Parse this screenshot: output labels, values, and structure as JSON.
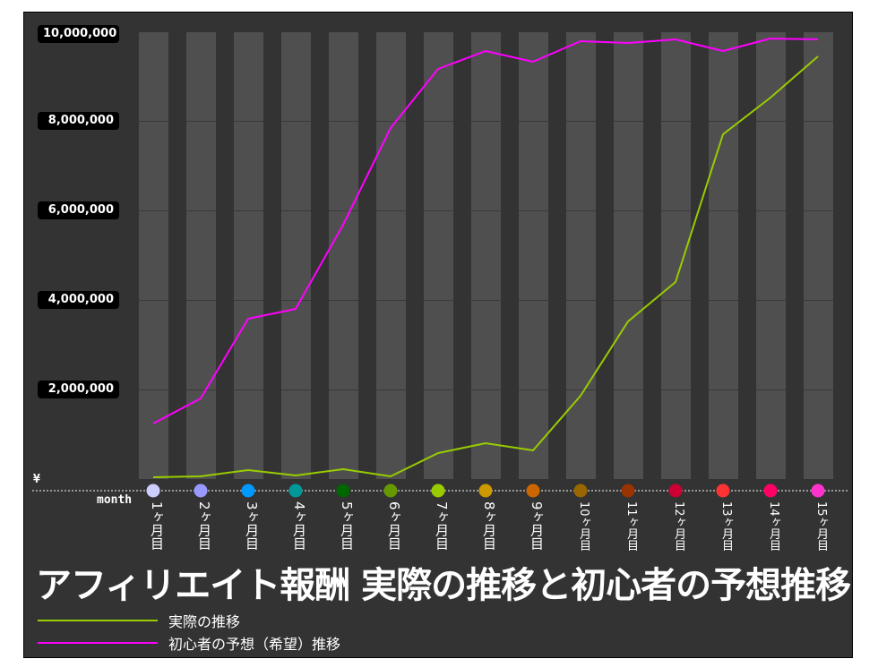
{
  "chart_data": {
    "type": "line",
    "title": "アフィリエイト報酬 実際の推移と初心者の予想推移",
    "xlabel": "month",
    "ylabel": "¥",
    "ylim": [
      0,
      10000000
    ],
    "yticks": [
      {
        "value": 10000000,
        "label": "10,000,000"
      },
      {
        "value": 8000000,
        "label": "8,000,000"
      },
      {
        "value": 6000000,
        "label": "6,000,000"
      },
      {
        "value": 4000000,
        "label": "4,000,000"
      },
      {
        "value": 2000000,
        "label": "2,000,000"
      }
    ],
    "grid": true,
    "legend_position": "bottom-left",
    "categories": [
      "1ヶ月目",
      "2ヶ月目",
      "3ヶ月目",
      "4ヶ月目",
      "5ヶ月目",
      "6ヶ月目",
      "7ヶ月目",
      "8ヶ月目",
      "9ヶ月目",
      "10ヶ月目",
      "11ヶ月目",
      "12ヶ月目",
      "13ヶ月目",
      "14ヶ月目",
      "15ヶ月目"
    ],
    "category_dot_colors": [
      "#CCCCFF",
      "#9999FF",
      "#0099FF",
      "#009999",
      "#006600",
      "#669900",
      "#99CC00",
      "#CC9900",
      "#CC6600",
      "#996600",
      "#993300",
      "#CC0033",
      "#FF3333",
      "#FF0066",
      "#FF33CC"
    ],
    "series": [
      {
        "name": "実際の推移",
        "color": "#99CC00",
        "values": [
          40000,
          60000,
          200000,
          80000,
          220000,
          60000,
          580000,
          800000,
          640000,
          1860000,
          3520000,
          4400000,
          7700000,
          8520000,
          9440000
        ]
      },
      {
        "name": "初心者の予想（希望）推移",
        "color": "#FF00FF",
        "values": [
          1240000,
          1800000,
          3580000,
          3800000,
          5680000,
          7840000,
          9160000,
          9560000,
          9320000,
          9780000,
          9740000,
          9820000,
          9560000,
          9840000,
          9820000
        ]
      }
    ]
  },
  "axis": {
    "y_unit": "¥",
    "x_unit": "month"
  },
  "title": "アフィリエイト報酬 実際の推移と初心者の予想推移",
  "legend": [
    {
      "label": "実際の推移",
      "color": "#99CC00"
    },
    {
      "label": "初心者の予想（希望）推移",
      "color": "#FF00FF"
    }
  ]
}
